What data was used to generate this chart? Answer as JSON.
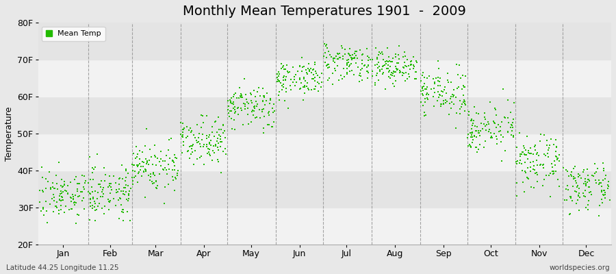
{
  "title": "Monthly Mean Temperatures 1901  -  2009",
  "ylabel": "Temperature",
  "xlabel_labels": [
    "Jan",
    "Feb",
    "Mar",
    "Apr",
    "May",
    "Jun",
    "Jul",
    "Aug",
    "Sep",
    "Oct",
    "Nov",
    "Dec"
  ],
  "ytick_labels": [
    "20F",
    "30F",
    "40F",
    "50F",
    "60F",
    "70F",
    "80F"
  ],
  "ytick_values": [
    20,
    30,
    40,
    50,
    60,
    70,
    80
  ],
  "ylim": [
    20,
    80
  ],
  "dot_color": "#22bb00",
  "dot_size": 2.5,
  "background_color": "#e8e8e8",
  "plot_bg_light": "#eeeeee",
  "plot_bg_dark": "#e0e0e0",
  "dashed_line_color": "#999999",
  "title_fontsize": 14,
  "axis_fontsize": 9,
  "tick_fontsize": 9,
  "legend_label": "Mean Temp",
  "footer_left": "Latitude 44.25 Longitude 11.25",
  "footer_right": "worldspecies.org",
  "num_years": 109,
  "monthly_mean_F": [
    33.5,
    34.5,
    41.0,
    48.5,
    57.0,
    65.0,
    69.5,
    68.0,
    61.0,
    51.5,
    42.0,
    35.5
  ],
  "monthly_std_F": [
    3.2,
    3.5,
    3.5,
    3.0,
    3.0,
    2.5,
    2.5,
    2.5,
    3.0,
    3.0,
    3.5,
    3.0
  ],
  "month_day_starts": [
    1,
    32,
    60,
    91,
    121,
    152,
    182,
    213,
    244,
    274,
    305,
    335
  ],
  "month_day_ends": [
    31,
    59,
    90,
    120,
    151,
    181,
    212,
    243,
    273,
    304,
    334,
    365
  ],
  "month_centers": [
    16,
    46,
    75,
    106,
    136,
    167,
    197,
    228,
    259,
    289,
    320,
    350
  ],
  "xlim": [
    0,
    366
  ]
}
